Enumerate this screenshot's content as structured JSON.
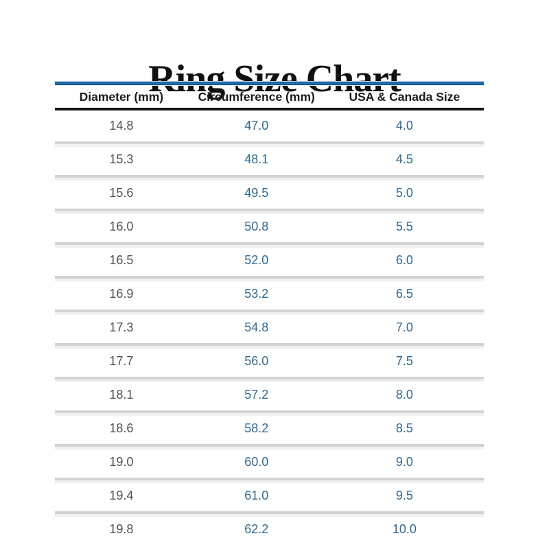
{
  "title": "Ring Size Chart",
  "colors": {
    "accent_line_blue": "#2271ae",
    "accent_line_dark_edge": "#174e85",
    "header_rule_black": "#141414",
    "header_text": "#1b1b1b",
    "diameter_text_gray": "#4d5355",
    "value_text_blue": "#2e6996",
    "separator_gray": "#d2d4d4",
    "background": "#ffffff"
  },
  "table": {
    "headers": [
      "Diameter (mm)",
      "Circumference (mm)",
      "USA & Canada Size"
    ],
    "rows": [
      {
        "diameter": "14.8",
        "circumference": "47.0",
        "size": "4.0"
      },
      {
        "diameter": "15.3",
        "circumference": "48.1",
        "size": "4.5"
      },
      {
        "diameter": "15.6",
        "circumference": "49.5",
        "size": "5.0"
      },
      {
        "diameter": "16.0",
        "circumference": "50.8",
        "size": "5.5"
      },
      {
        "diameter": "16.5",
        "circumference": "52.0",
        "size": "6.0"
      },
      {
        "diameter": "16.9",
        "circumference": "53.2",
        "size": "6.5"
      },
      {
        "diameter": "17.3",
        "circumference": "54.8",
        "size": "7.0"
      },
      {
        "diameter": "17.7",
        "circumference": "56.0",
        "size": "7.5"
      },
      {
        "diameter": "18.1",
        "circumference": "57.2",
        "size": "8.0"
      },
      {
        "diameter": "18.6",
        "circumference": "58.2",
        "size": "8.5"
      },
      {
        "diameter": "19.0",
        "circumference": "60.0",
        "size": "9.0"
      },
      {
        "diameter": "19.4",
        "circumference": "61.0",
        "size": "9.5"
      },
      {
        "diameter": "19.8",
        "circumference": "62.2",
        "size": "10.0"
      }
    ]
  },
  "chart_data": {
    "type": "table",
    "title": "Ring Size Chart",
    "columns": [
      "Diameter (mm)",
      "Circumference (mm)",
      "USA & Canada Size"
    ],
    "rows": [
      [
        14.8,
        47.0,
        4.0
      ],
      [
        15.3,
        48.1,
        4.5
      ],
      [
        15.6,
        49.5,
        5.0
      ],
      [
        16.0,
        50.8,
        5.5
      ],
      [
        16.5,
        52.0,
        6.0
      ],
      [
        16.9,
        53.2,
        6.5
      ],
      [
        17.3,
        54.8,
        7.0
      ],
      [
        17.7,
        56.0,
        7.5
      ],
      [
        18.1,
        57.2,
        8.0
      ],
      [
        18.6,
        58.2,
        8.5
      ],
      [
        19.0,
        60.0,
        9.0
      ],
      [
        19.4,
        61.0,
        9.5
      ],
      [
        19.8,
        62.2,
        10.0
      ]
    ]
  }
}
